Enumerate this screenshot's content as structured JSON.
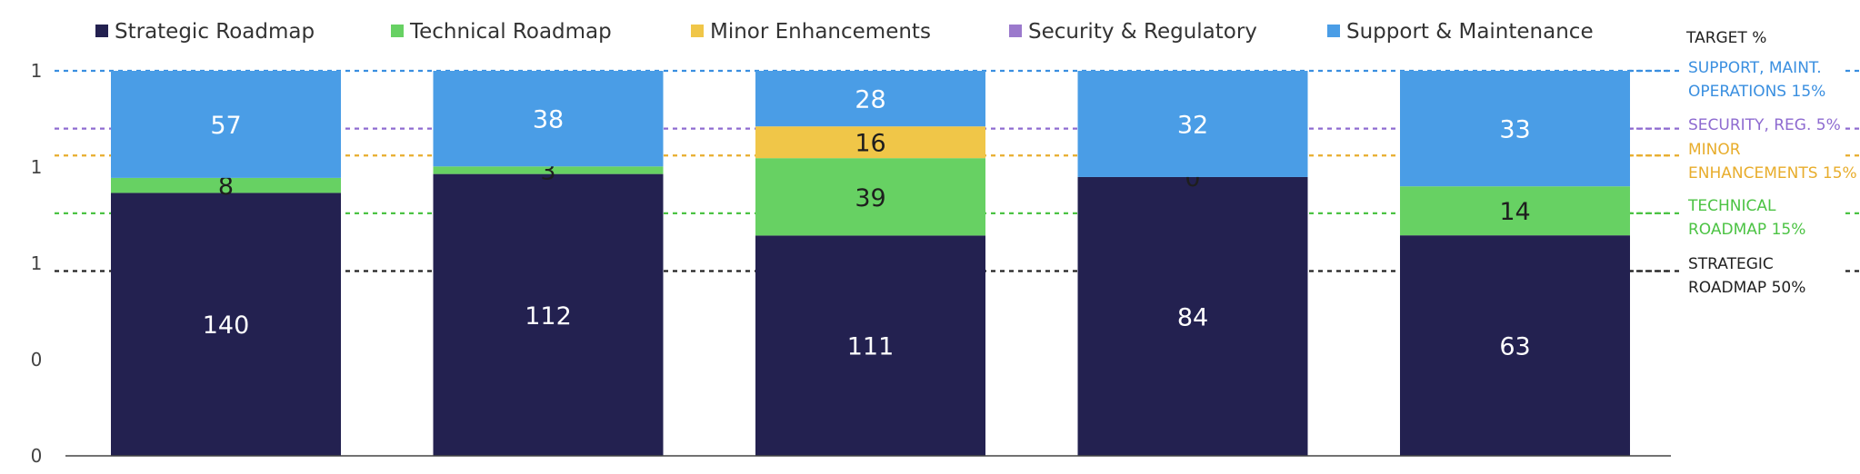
{
  "chart_data": {
    "type": "bar",
    "stacked": true,
    "categories": [
      "",
      "",
      "",
      "",
      ""
    ],
    "series": [
      {
        "name": "Strategic Roadmap",
        "color": "#232150",
        "label_color": "#ffffff",
        "values": [
          140,
          112,
          111,
          84,
          63
        ]
      },
      {
        "name": "Technical Roadmap",
        "color": "#67d163",
        "label_color": "#1e1e1e",
        "values": [
          8,
          3,
          39,
          0,
          14
        ]
      },
      {
        "name": "Minor Enhancements",
        "color": "#f0c648",
        "label_color": "#1e1e1e",
        "values": [
          0,
          0,
          16,
          0,
          0
        ]
      },
      {
        "name": "Security & Regulatory",
        "color": "#9b79cc",
        "label_color": "#1e1e1e",
        "values": [
          0,
          0,
          0,
          0,
          0
        ]
      },
      {
        "name": "Support & Maintenance",
        "color": "#4a9de6",
        "label_color": "#ffffff",
        "values": [
          57,
          38,
          28,
          32,
          33
        ]
      }
    ],
    "segment_labels": [
      [
        "140",
        "8",
        "",
        "",
        "57"
      ],
      [
        "112",
        "3",
        "",
        "",
        "38"
      ],
      [
        "111",
        "39",
        "16",
        "",
        "28"
      ],
      [
        "84",
        "0",
        "",
        "",
        "32"
      ],
      [
        "63",
        "14",
        "",
        "",
        "33"
      ]
    ],
    "y_tick_labels": [
      "0",
      "0",
      "1",
      "1",
      "1"
    ],
    "legend_position": "top",
    "grid": false,
    "targets": {
      "header": "TARGET %",
      "lines": [
        {
          "label_lines": [
            "SUPPORT, MAINT.",
            "OPERATIONS 15%"
          ],
          "color": "#3a8fe0",
          "level": 1.0
        },
        {
          "label_lines": [
            "SECURITY, REG. 5%"
          ],
          "color": "#8e6bd0",
          "level": 0.85
        },
        {
          "label_lines": [
            "MINOR",
            "ENHANCEMENTS 15%"
          ],
          "color": "#e8ad2c",
          "level": 0.78
        },
        {
          "label_lines": [
            "TECHNICAL",
            "ROADMAP 15%"
          ],
          "color": "#4cc344",
          "level": 0.63
        },
        {
          "label_lines": [
            "STRATEGIC",
            "ROADMAP 50%"
          ],
          "color": "#222222",
          "level": 0.48
        }
      ]
    }
  }
}
